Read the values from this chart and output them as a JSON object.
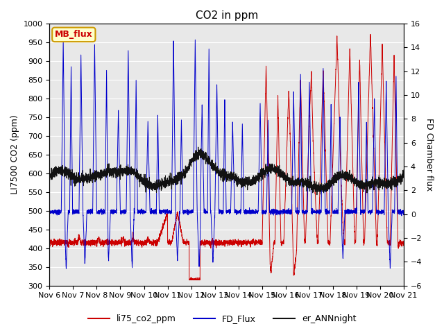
{
  "title": "CO2 in ppm",
  "ylabel_left": "LI7500 CO2 (ppm)",
  "ylabel_right": "FD Chamber flux",
  "ylim_left": [
    300,
    1000
  ],
  "ylim_right": [
    -6,
    16
  ],
  "xlim": [
    0,
    360
  ],
  "xlabel_ticks": [
    0,
    24,
    48,
    72,
    96,
    120,
    144,
    168,
    192,
    216,
    240,
    264,
    288,
    312,
    336,
    360
  ],
  "xlabel_labels": [
    "Nov 6",
    "Nov 7",
    "Nov 8",
    "Nov 9",
    "Nov 10",
    "Nov 11",
    "Nov 12",
    "Nov 13",
    "Nov 14",
    "Nov 15",
    "Nov 16",
    "Nov 17",
    "Nov 18",
    "Nov 19",
    "Nov 20",
    "Nov 21"
  ],
  "legend_labels": [
    "li75_co2_ppm",
    "FD_Flux",
    "er_ANNnight"
  ],
  "legend_colors": [
    "#cc0000",
    "#0000cc",
    "#111111"
  ],
  "line_colors": {
    "red": "#cc0000",
    "blue": "#0000cc",
    "black": "#111111"
  },
  "annotation_text": "MB_flux",
  "annotation_color": "#cc0000",
  "annotation_bg": "#ffffcc",
  "annotation_border": "#cc9900",
  "background_color": "#e8e8e8",
  "outer_background": "#ffffff",
  "grid_color": "#ffffff",
  "title_fontsize": 11,
  "axis_label_fontsize": 9,
  "tick_fontsize": 8,
  "legend_fontsize": 9
}
